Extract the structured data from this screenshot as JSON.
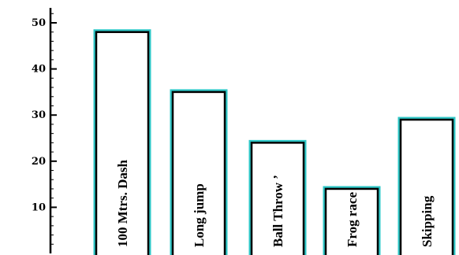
{
  "chart_data": {
    "type": "bar",
    "categories": [
      "100 Mtrs. Dash",
      "Long jump",
      "Ball Throw ’",
      "Frog race",
      "Skipping"
    ],
    "values": [
      48,
      35,
      24,
      14,
      29
    ],
    "title": "",
    "xlabel": "",
    "ylabel": "",
    "ylim": [
      0,
      52
    ],
    "yticks": [
      10,
      20,
      30,
      40,
      50
    ],
    "grid": false,
    "colors": {
      "bar_fill": "#ffffff",
      "bar_outline": "#000000",
      "bar_glow": "#2ec7c7",
      "axis": "#000000"
    }
  }
}
